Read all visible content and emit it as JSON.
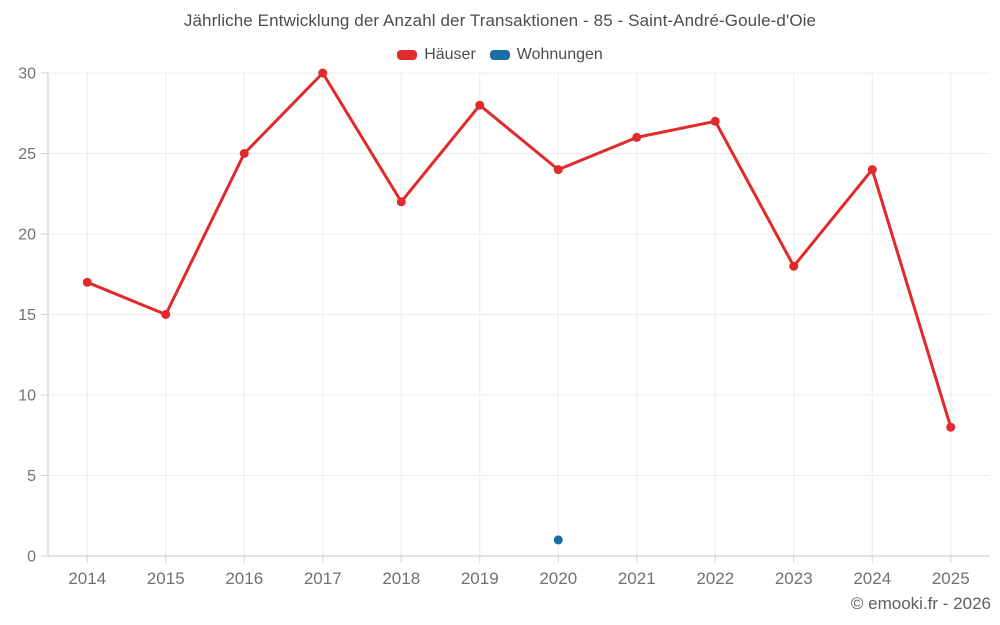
{
  "header": {
    "title": "Jährliche Entwicklung der Anzahl der Transaktionen - 85 - Saint-André-Goule-d'Oie"
  },
  "legend": {
    "items": [
      {
        "label": "Häuser",
        "color": "#e02a2b"
      },
      {
        "label": "Wohnungen",
        "color": "#1b6da8"
      }
    ]
  },
  "footer": {
    "credit": "© emooki.fr - 2026"
  },
  "chart_data": {
    "type": "line",
    "title": "Jährliche Entwicklung der Anzahl der Transaktionen - 85 - Saint-André-Goule-d'Oie",
    "categories": [
      "2014",
      "2015",
      "2016",
      "2017",
      "2018",
      "2019",
      "2020",
      "2021",
      "2022",
      "2023",
      "2024",
      "2025"
    ],
    "series": [
      {
        "name": "Häuser",
        "color": "#e02a2b",
        "values": [
          17,
          15,
          25,
          30,
          22,
          28,
          24,
          26,
          27,
          18,
          24,
          8
        ]
      },
      {
        "name": "Wohnungen",
        "color": "#1b6da8",
        "values": [
          null,
          null,
          null,
          null,
          null,
          null,
          1,
          null,
          null,
          null,
          null,
          null
        ]
      }
    ],
    "xlabel": "",
    "ylabel": "",
    "ylim": [
      0,
      30
    ],
    "ytick_step": 5,
    "grid": true,
    "legend_position": "top"
  },
  "colors": {
    "background": "#ffffff",
    "grid": "#ececec",
    "axis": "#c9c9c9",
    "tick": "#d4d4d4",
    "tick_label": "#717171",
    "title_text": "#4d4d4d",
    "footer_text": "#5e5e5e"
  }
}
